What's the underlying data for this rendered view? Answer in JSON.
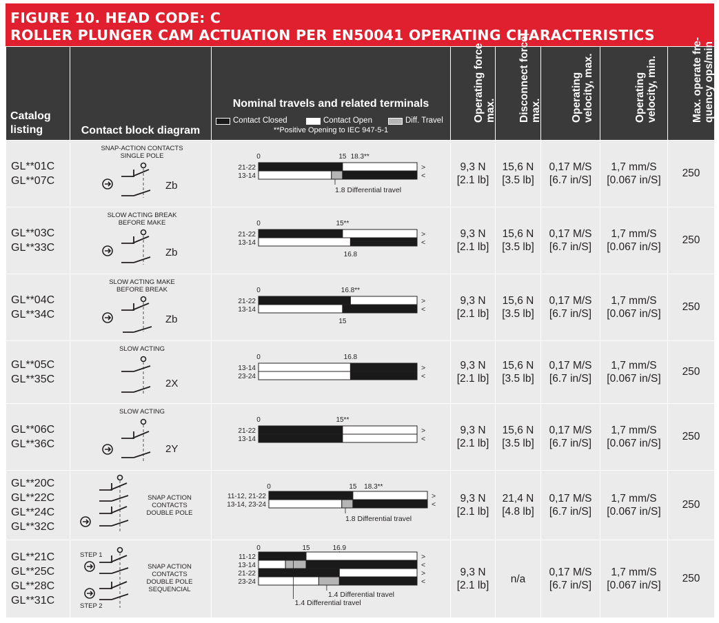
{
  "title": {
    "line1": "FIGURE 10. HEAD CODE: C",
    "line2": "ROLLER PLUNGER CAM ACTUATION PER EN50041 OPERATING CHARACTERISTICS"
  },
  "headers": {
    "catalog": [
      "Catalog",
      "listing"
    ],
    "diagram": "Contact block diagram",
    "nominal": "Nominal travels and related terminals",
    "legend": {
      "closed": "Contact Closed",
      "open": "Contact Open",
      "diff": "Diff. Travel"
    },
    "note": "**Positive Opening to IEC 947-5-1",
    "operating_force": [
      "Operating force",
      "max."
    ],
    "disconnect_force": [
      "Disconnect force,",
      "max."
    ],
    "velocity_max": [
      "Operating",
      "velocity, max."
    ],
    "velocity_min": [
      "Operating",
      "velocity, min."
    ],
    "frequency": [
      "Max. operate fre-",
      "quency ops/min"
    ]
  },
  "colors": {
    "title_bg": "#e0202e",
    "header_bg": "#3a3a3a",
    "row_bg": "#ebebeb",
    "closed": "#1a1a1a",
    "open": "#ffffff",
    "diff": "#b5b5b5"
  },
  "rows": [
    {
      "catalog": [
        "GL**01C",
        "GL**07C"
      ],
      "diagram": {
        "caption": [
          "SNAP-ACTION CONTACTS",
          "SINGLE POLE"
        ],
        "label": "Zb",
        "icon": "snap-action-single-pole-icon"
      },
      "travel": {
        "ticks": [
          "0",
          "15",
          "18.3**"
        ],
        "terminals": [
          "21-22",
          "13-14"
        ],
        "arrows": [
          ">",
          "<"
        ],
        "note": "1.8 Differential travel",
        "bars": [
          [
            {
              "to": 0.53,
              "s": "closed"
            },
            {
              "to": 1,
              "s": "open"
            }
          ],
          [
            {
              "to": 0.46,
              "s": "open"
            },
            {
              "to": 0.53,
              "s": "diff"
            },
            {
              "to": 1,
              "s": "closed"
            }
          ]
        ]
      },
      "operating_force": [
        "9,3 N",
        "[2.1 lb]"
      ],
      "disconnect_force": [
        "15,6 N",
        "[3.5 lb]"
      ],
      "velocity_max": [
        "0,17 M/S",
        "[6.7 in/S]"
      ],
      "velocity_min": [
        "1,7 mm/S",
        "[0.067 in/S]"
      ],
      "frequency": "250"
    },
    {
      "catalog": [
        "GL**03C",
        "GL**33C"
      ],
      "diagram": {
        "caption": [
          "SLOW ACTING BREAK",
          "BEFORE MAKE"
        ],
        "label": "Zb",
        "icon": "slow-acting-break-before-make-icon"
      },
      "travel": {
        "ticks": [
          "0",
          "15**"
        ],
        "terminals": [
          "21-22",
          "13-14"
        ],
        "arrows": [
          ">",
          "<"
        ],
        "note": "16.8",
        "bars": [
          [
            {
              "to": 0.53,
              "s": "closed"
            },
            {
              "to": 1,
              "s": "open"
            }
          ],
          [
            {
              "to": 0.58,
              "s": "open"
            },
            {
              "to": 1,
              "s": "closed"
            }
          ]
        ]
      },
      "operating_force": [
        "9,3 N",
        "[2.1 lb]"
      ],
      "disconnect_force": [
        "15,6 N",
        "[3.5 lb]"
      ],
      "velocity_max": [
        "0,17 M/S",
        "[6.7 in/S]"
      ],
      "velocity_min": [
        "1,7 mm/S",
        "[0.067 in/S]"
      ],
      "frequency": "250"
    },
    {
      "catalog": [
        "GL**04C",
        "GL**34C"
      ],
      "diagram": {
        "caption": [
          "SLOW ACTING MAKE",
          "BEFORE BREAK"
        ],
        "label": "Zb",
        "icon": "slow-acting-make-before-break-icon"
      },
      "travel": {
        "ticks": [
          "0",
          "16.8**"
        ],
        "terminals": [
          "21-22",
          "13-14"
        ],
        "arrows": [
          ">",
          "<"
        ],
        "note": "15",
        "bars": [
          [
            {
              "to": 0.58,
              "s": "closed"
            },
            {
              "to": 1,
              "s": "open"
            }
          ],
          [
            {
              "to": 0.53,
              "s": "open"
            },
            {
              "to": 1,
              "s": "closed"
            }
          ]
        ]
      },
      "operating_force": [
        "9,3 N",
        "[2.1 lb]"
      ],
      "disconnect_force": [
        "15,6 N",
        "[3.5 lb]"
      ],
      "velocity_max": [
        "0,17 M/S",
        "[6.7 in/S]"
      ],
      "velocity_min": [
        "1,7 mm/S",
        "[0.067 in/S]"
      ],
      "frequency": "250"
    },
    {
      "catalog": [
        "GL**05C",
        "GL**35C"
      ],
      "diagram": {
        "caption": [
          "SLOW ACTING"
        ],
        "label": "2X",
        "icon": "slow-acting-2x-icon"
      },
      "travel": {
        "ticks": [
          "0",
          "16.8"
        ],
        "terminals": [
          "13-14",
          "23-24"
        ],
        "arrows": [
          ">",
          "<"
        ],
        "note": "",
        "bars": [
          [
            {
              "to": 0.58,
              "s": "open"
            },
            {
              "to": 1,
              "s": "closed"
            }
          ],
          [
            {
              "to": 0.58,
              "s": "open"
            },
            {
              "to": 1,
              "s": "closed"
            }
          ]
        ]
      },
      "operating_force": [
        "9,3 N",
        "[2.1 lb]"
      ],
      "disconnect_force": [
        "15,6 N",
        "[3.5 lb]"
      ],
      "velocity_max": [
        "0,17 M/S",
        "[6.7 in/S]"
      ],
      "velocity_min": [
        "1,7 mm/S",
        "[0.067 in/S]"
      ],
      "frequency": "250"
    },
    {
      "catalog": [
        "GL**06C",
        "GL**36C"
      ],
      "diagram": {
        "caption": [
          "SLOW ACTING"
        ],
        "label": "2Y",
        "icon": "slow-acting-2y-icon"
      },
      "travel": {
        "ticks": [
          "0",
          "15**"
        ],
        "terminals": [
          "21-22",
          "13-14"
        ],
        "arrows": [
          ">",
          "<"
        ],
        "note": "",
        "bars": [
          [
            {
              "to": 0.53,
              "s": "closed"
            },
            {
              "to": 1,
              "s": "open"
            }
          ],
          [
            {
              "to": 0.53,
              "s": "closed"
            },
            {
              "to": 1,
              "s": "open"
            }
          ]
        ]
      },
      "operating_force": [
        "9,3 N",
        "[2.1 lb]"
      ],
      "disconnect_force": [
        "15,6 N",
        "[3.5 lb]"
      ],
      "velocity_max": [
        "0,17 M/S",
        "[6.7 in/S]"
      ],
      "velocity_min": [
        "1,7 mm/S",
        "[0.067 in/S]"
      ],
      "frequency": "250"
    },
    {
      "catalog": [
        "GL**20C",
        "GL**22C",
        "GL**24C",
        "GL**32C"
      ],
      "diagram": {
        "caption": [
          "SNAP ACTION",
          "CONTACTS",
          "DOUBLE POLE"
        ],
        "label": "",
        "icon": "snap-action-double-pole-icon"
      },
      "travel": {
        "ticks": [
          "0",
          "15",
          "18.3**"
        ],
        "terminals": [
          "11-12, 21-22",
          "13-14, 23-24"
        ],
        "arrows": [
          ">",
          "<"
        ],
        "note": "1.8 Differential travel",
        "bars": [
          [
            {
              "to": 0.53,
              "s": "closed"
            },
            {
              "to": 1,
              "s": "open"
            }
          ],
          [
            {
              "to": 0.46,
              "s": "open"
            },
            {
              "to": 0.53,
              "s": "diff"
            },
            {
              "to": 1,
              "s": "closed"
            }
          ]
        ]
      },
      "operating_force": [
        "9,3 N",
        "[2.1 lb]"
      ],
      "disconnect_force": [
        "21,4 N",
        "[4.8 lb]"
      ],
      "velocity_max": [
        "0,17 M/S",
        "[6.7 in/S]"
      ],
      "velocity_min": [
        "1,7 mm/S",
        "[0.067 in/S]"
      ],
      "frequency": "250"
    },
    {
      "catalog": [
        "GL**21C",
        "GL**25C",
        "GL**28C",
        "GL**31C"
      ],
      "diagram": {
        "caption": [
          "SNAP ACTION",
          "CONTACTS",
          "DOUBLE POLE",
          "SEQUENCIAL"
        ],
        "label": "",
        "step1": "STEP 1",
        "step2": "STEP 2",
        "icon": "snap-action-double-pole-sequential-icon"
      },
      "travel": {
        "ticks": [
          "0",
          "15",
          "16.9"
        ],
        "terminals": [
          "11-12",
          "13-14",
          "21-22",
          "23-24"
        ],
        "arrows": [
          ">",
          "<",
          ">",
          "<"
        ],
        "note": "1.4 Differential travel",
        "note2": "1.4 Differential travel",
        "bars": [
          [
            {
              "to": 0.3,
              "s": "closed"
            },
            {
              "to": 1,
              "s": "open"
            }
          ],
          [
            {
              "to": 0.17,
              "s": "open"
            },
            {
              "to": 0.3,
              "s": "diff"
            },
            {
              "to": 1,
              "s": "closed"
            }
          ],
          [
            {
              "to": 0.51,
              "s": "closed"
            },
            {
              "to": 1,
              "s": "open"
            }
          ],
          [
            {
              "to": 0.38,
              "s": "open"
            },
            {
              "to": 0.51,
              "s": "diff"
            },
            {
              "to": 1,
              "s": "closed"
            }
          ]
        ]
      },
      "operating_force": [
        "9,3 N",
        "[2.1 lb]"
      ],
      "disconnect_force": [
        "n/a"
      ],
      "velocity_max": [
        "0,17 M/S",
        "[6.7 in/S]"
      ],
      "velocity_min": [
        "1,7 mm/S",
        "[0.067 in/S]"
      ],
      "frequency": "250"
    }
  ]
}
